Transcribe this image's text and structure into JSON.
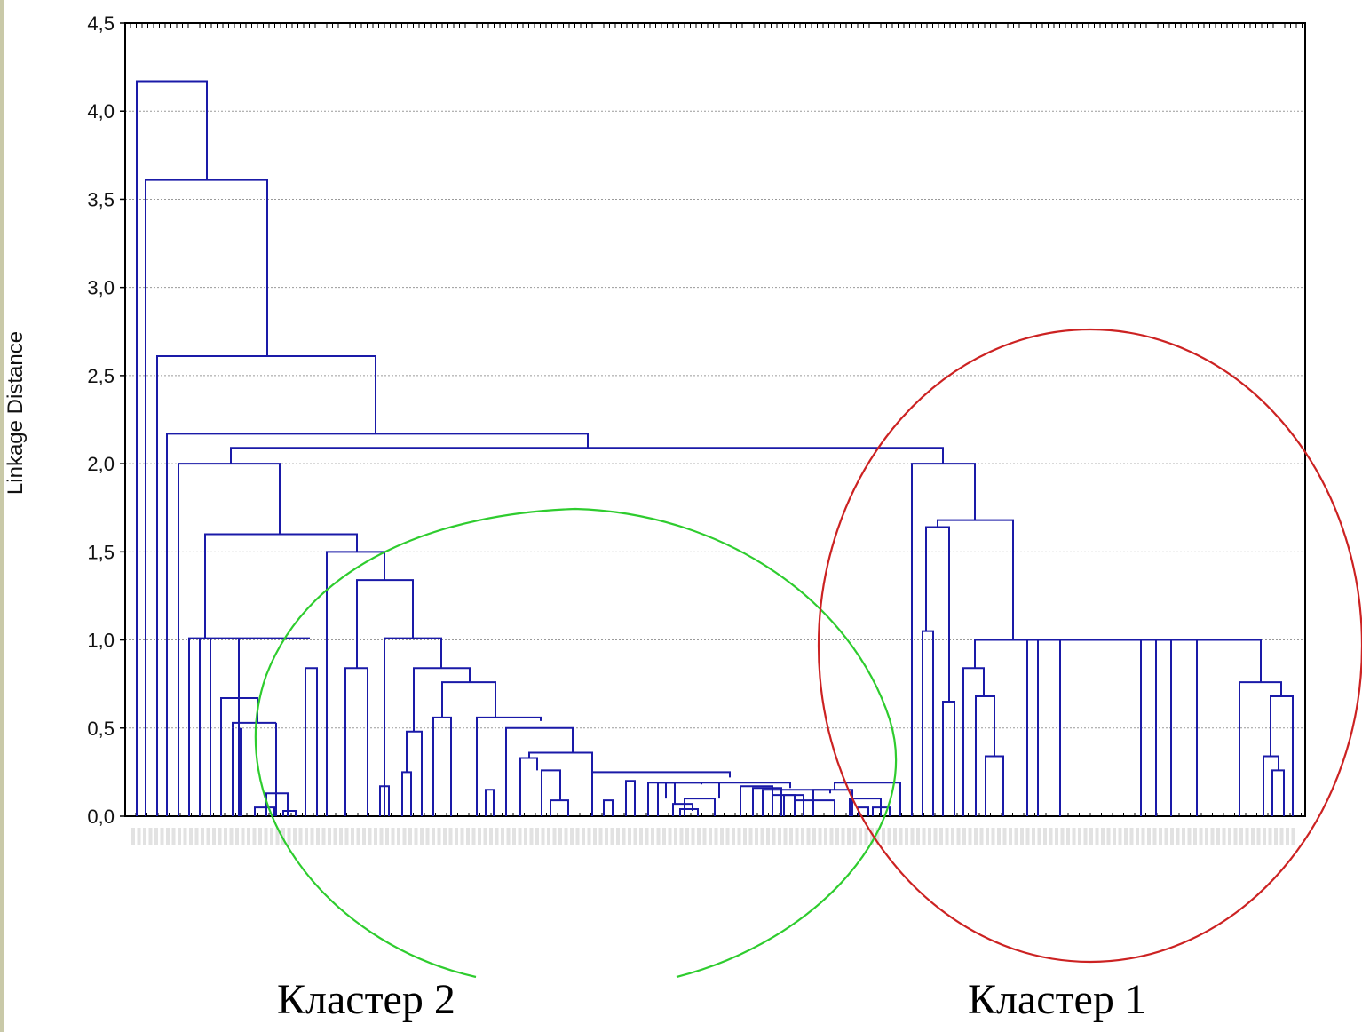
{
  "chart_data": {
    "type": "dendrogram",
    "ylabel": "Linkage Distance",
    "ylim": [
      0,
      4.5
    ],
    "y_ticks": [
      "0,0",
      "0,5",
      "1,0",
      "1,5",
      "2,0",
      "2,5",
      "3,0",
      "3,5",
      "4,0",
      "4,5"
    ],
    "y_tick_values": [
      0,
      0.5,
      1.0,
      1.5,
      2.0,
      2.5,
      3.0,
      3.5,
      4.0,
      4.5
    ],
    "grid": true,
    "line_color": "#1a1aa8",
    "merge_heights": [
      4.17,
      3.61,
      2.61,
      2.17,
      2.09,
      2.0,
      1.6,
      1.5,
      1.34,
      1.0,
      0.84,
      0.76,
      0.67,
      0.53,
      0.35,
      0.25,
      0.15,
      0.05,
      2.0,
      1.68,
      1.64,
      1.05,
      1.0,
      0.84,
      0.76,
      0.68,
      0.65,
      0.34,
      0.26
    ],
    "annotations": [
      {
        "text": "Кластер 2",
        "color": "#2ecc2e"
      },
      {
        "text": "Кластер 1",
        "color": "#cc2222"
      }
    ]
  }
}
